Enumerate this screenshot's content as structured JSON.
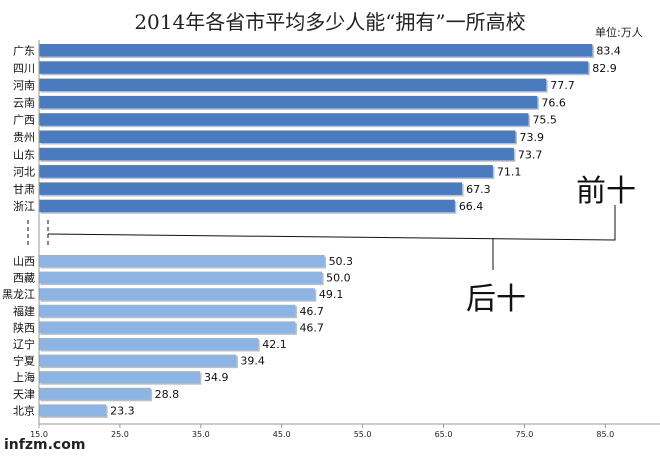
{
  "chart_data": {
    "type": "bar",
    "orientation": "horizontal",
    "title": "2014年各省市平均多少人能“拥有”一所高校",
    "unit": "单位:万人",
    "xlim": [
      15,
      95
    ],
    "xticks": [
      "15.0",
      "25.0",
      "35.0",
      "45.0",
      "55.0",
      "65.0",
      "75.0",
      "85.0"
    ],
    "groups": [
      {
        "name": "前十",
        "color": "#4a7bbf",
        "categories": [
          "广东",
          "四川",
          "河南",
          "云南",
          "广西",
          "贵州",
          "山东",
          "河北",
          "甘肃",
          "浙江"
        ],
        "values": [
          83.4,
          82.9,
          77.7,
          76.6,
          75.5,
          73.9,
          73.7,
          71.1,
          67.3,
          66.4
        ],
        "labels": [
          "83.4",
          "82.9",
          "77.7",
          "76.6",
          "75.5",
          "73.9",
          "73.7",
          "71.1",
          "67.3",
          "66.4"
        ]
      },
      {
        "name": "后十",
        "color": "#8db4e2",
        "categories": [
          "山西",
          "西藏",
          "黑龙江",
          "福建",
          "陕西",
          "辽宁",
          "宁夏",
          "上海",
          "天津",
          "北京"
        ],
        "values": [
          50.3,
          50.0,
          49.1,
          46.7,
          46.7,
          42.1,
          39.4,
          34.9,
          28.8,
          23.3
        ],
        "labels": [
          "50.3",
          "50.0",
          "49.1",
          "46.7",
          "46.7",
          "42.1",
          "39.4",
          "34.9",
          "28.8",
          "23.3"
        ]
      }
    ]
  },
  "watermark": "infzm.com"
}
